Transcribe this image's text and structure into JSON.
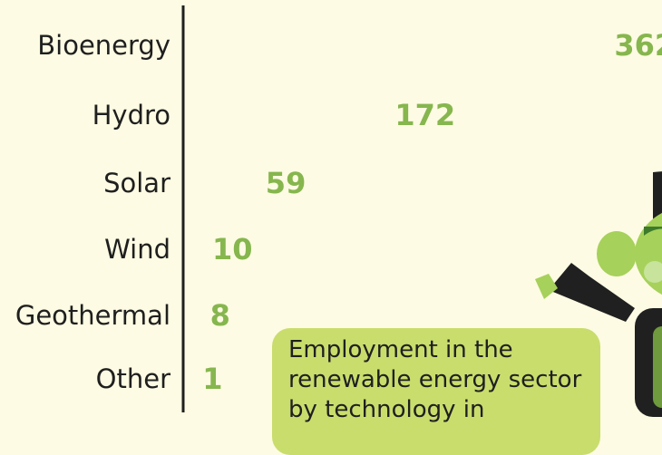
{
  "chart_data": {
    "type": "bar",
    "style": "pictograph",
    "icon": "green-face-with-black-cap",
    "unit_per_icon": 60,
    "categories": [
      "Bioenergy",
      "Hydro",
      "Solar",
      "Wind",
      "Geothermal",
      "Other"
    ],
    "values": [
      362,
      172,
      59,
      10,
      8,
      1
    ],
    "value_labels": [
      "362",
      "172",
      "59",
      "10",
      "8",
      "1"
    ],
    "colors": {
      "face": "#a6d15a",
      "face_shade": "#7fb23f",
      "hair": "#3d7a2b",
      "cap": "#202020",
      "value_text": "#86b64e",
      "background": "#fdfbe3"
    }
  },
  "note": {
    "text": "Employment in the renewable energy sector by technology in"
  }
}
